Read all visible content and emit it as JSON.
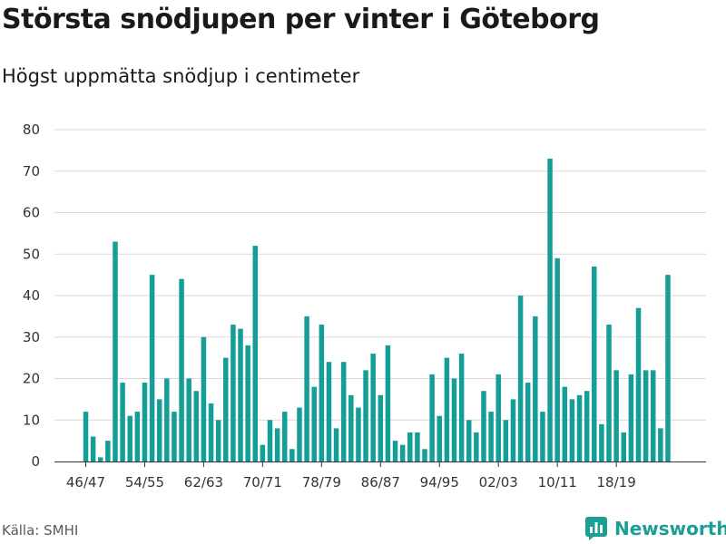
{
  "title": "Största snödjupen per vinter i Göteborg",
  "subtitle": "Högst uppmätta snödjup i centimeter",
  "source": "Källa: SMHI",
  "brand": "Newsworthy",
  "colors": {
    "bar": "#149e97",
    "grid": "#d9d9d9",
    "axis": "#333333",
    "brand": "#1a9e96"
  },
  "chart_data": {
    "type": "bar",
    "title": "Största snödjupen per vinter i Göteborg",
    "subtitle": "Högst uppmätta snödjup i centimeter",
    "xlabel": "",
    "ylabel": "",
    "ylim": [
      0,
      80
    ],
    "yticks": [
      0,
      10,
      20,
      30,
      40,
      50,
      60,
      70,
      80
    ],
    "grid": true,
    "first_season_start": 1946,
    "x_tick_labels": [
      "46/47",
      "54/55",
      "62/63",
      "70/71",
      "78/79",
      "86/87",
      "94/95",
      "02/03",
      "10/11",
      "18/19"
    ],
    "values": [
      12,
      6,
      1,
      5,
      53,
      19,
      11,
      12,
      19,
      45,
      15,
      20,
      12,
      44,
      20,
      17,
      30,
      14,
      10,
      25,
      33,
      32,
      28,
      52,
      4,
      10,
      8,
      12,
      3,
      13,
      35,
      18,
      33,
      24,
      8,
      24,
      16,
      13,
      22,
      26,
      16,
      28,
      5,
      4,
      7,
      7,
      3,
      21,
      11,
      25,
      20,
      26,
      10,
      7,
      17,
      12,
      21,
      10,
      15,
      40,
      19,
      35,
      12,
      73,
      49,
      18,
      15,
      16,
      17,
      47,
      9,
      33,
      22,
      7,
      21,
      37,
      22,
      22,
      8,
      45
    ]
  }
}
